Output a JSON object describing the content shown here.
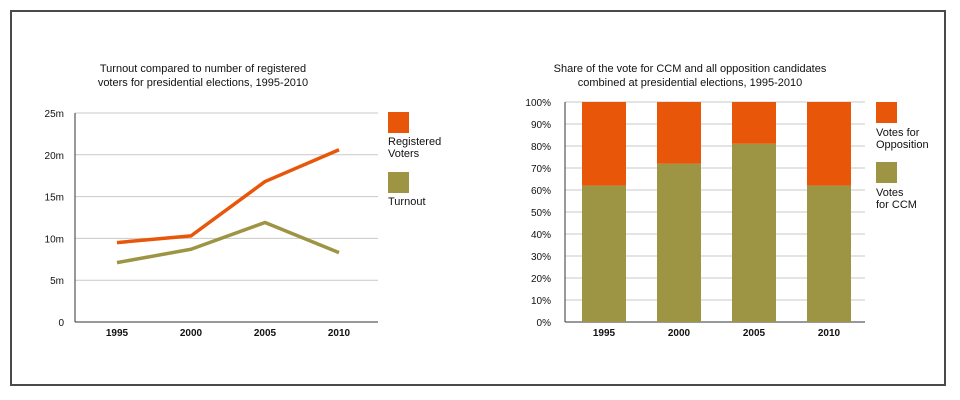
{
  "colors": {
    "registered": "#e8560a",
    "turnout": "#9d9444",
    "opposition": "#e8560a",
    "ccm": "#9d9444",
    "grid": "#c9c9c9",
    "frame": "#4a4a4a"
  },
  "chart_data": [
    {
      "type": "line",
      "title_lines": [
        "Turnout compared to number of registered",
        "voters for presidential elections, 1995-2010"
      ],
      "categories": [
        "1995",
        "2000",
        "2005",
        "2010"
      ],
      "y_ticks": [
        "0",
        "5m",
        "10m",
        "15m",
        "20m",
        "25m"
      ],
      "ylim": [
        0,
        25
      ],
      "grid": true,
      "legend_position": "right",
      "series": [
        {
          "name": "Registered Voters",
          "legend_lines": [
            "Registered",
            "Voters"
          ],
          "color": "#e8560a",
          "values": [
            9.5,
            10.3,
            16.8,
            20.6
          ]
        },
        {
          "name": "Turnout",
          "legend_lines": [
            "Turnout"
          ],
          "color": "#9d9444",
          "values": [
            7.1,
            8.7,
            11.9,
            8.3
          ]
        }
      ]
    },
    {
      "type": "bar",
      "stacked": true,
      "title_lines": [
        "Share of the vote for CCM and all opposition candidates",
        "combined at presidential elections, 1995-2010"
      ],
      "categories": [
        "1995",
        "2000",
        "2005",
        "2010"
      ],
      "y_ticks": [
        "0%",
        "10%",
        "20%",
        "30%",
        "40%",
        "50%",
        "60%",
        "70%",
        "80%",
        "90%",
        "100%"
      ],
      "ylim": [
        0,
        100
      ],
      "grid": true,
      "legend_position": "right",
      "series": [
        {
          "name": "Votes for CCM",
          "legend_lines": [
            "Votes",
            "for CCM"
          ],
          "color": "#9d9444",
          "values": [
            62,
            72,
            81,
            62
          ]
        },
        {
          "name": "Votes for Opposition",
          "legend_lines": [
            "Votes for",
            "Opposition"
          ],
          "color": "#e8560a",
          "values": [
            38,
            28,
            19,
            38
          ]
        }
      ]
    }
  ]
}
